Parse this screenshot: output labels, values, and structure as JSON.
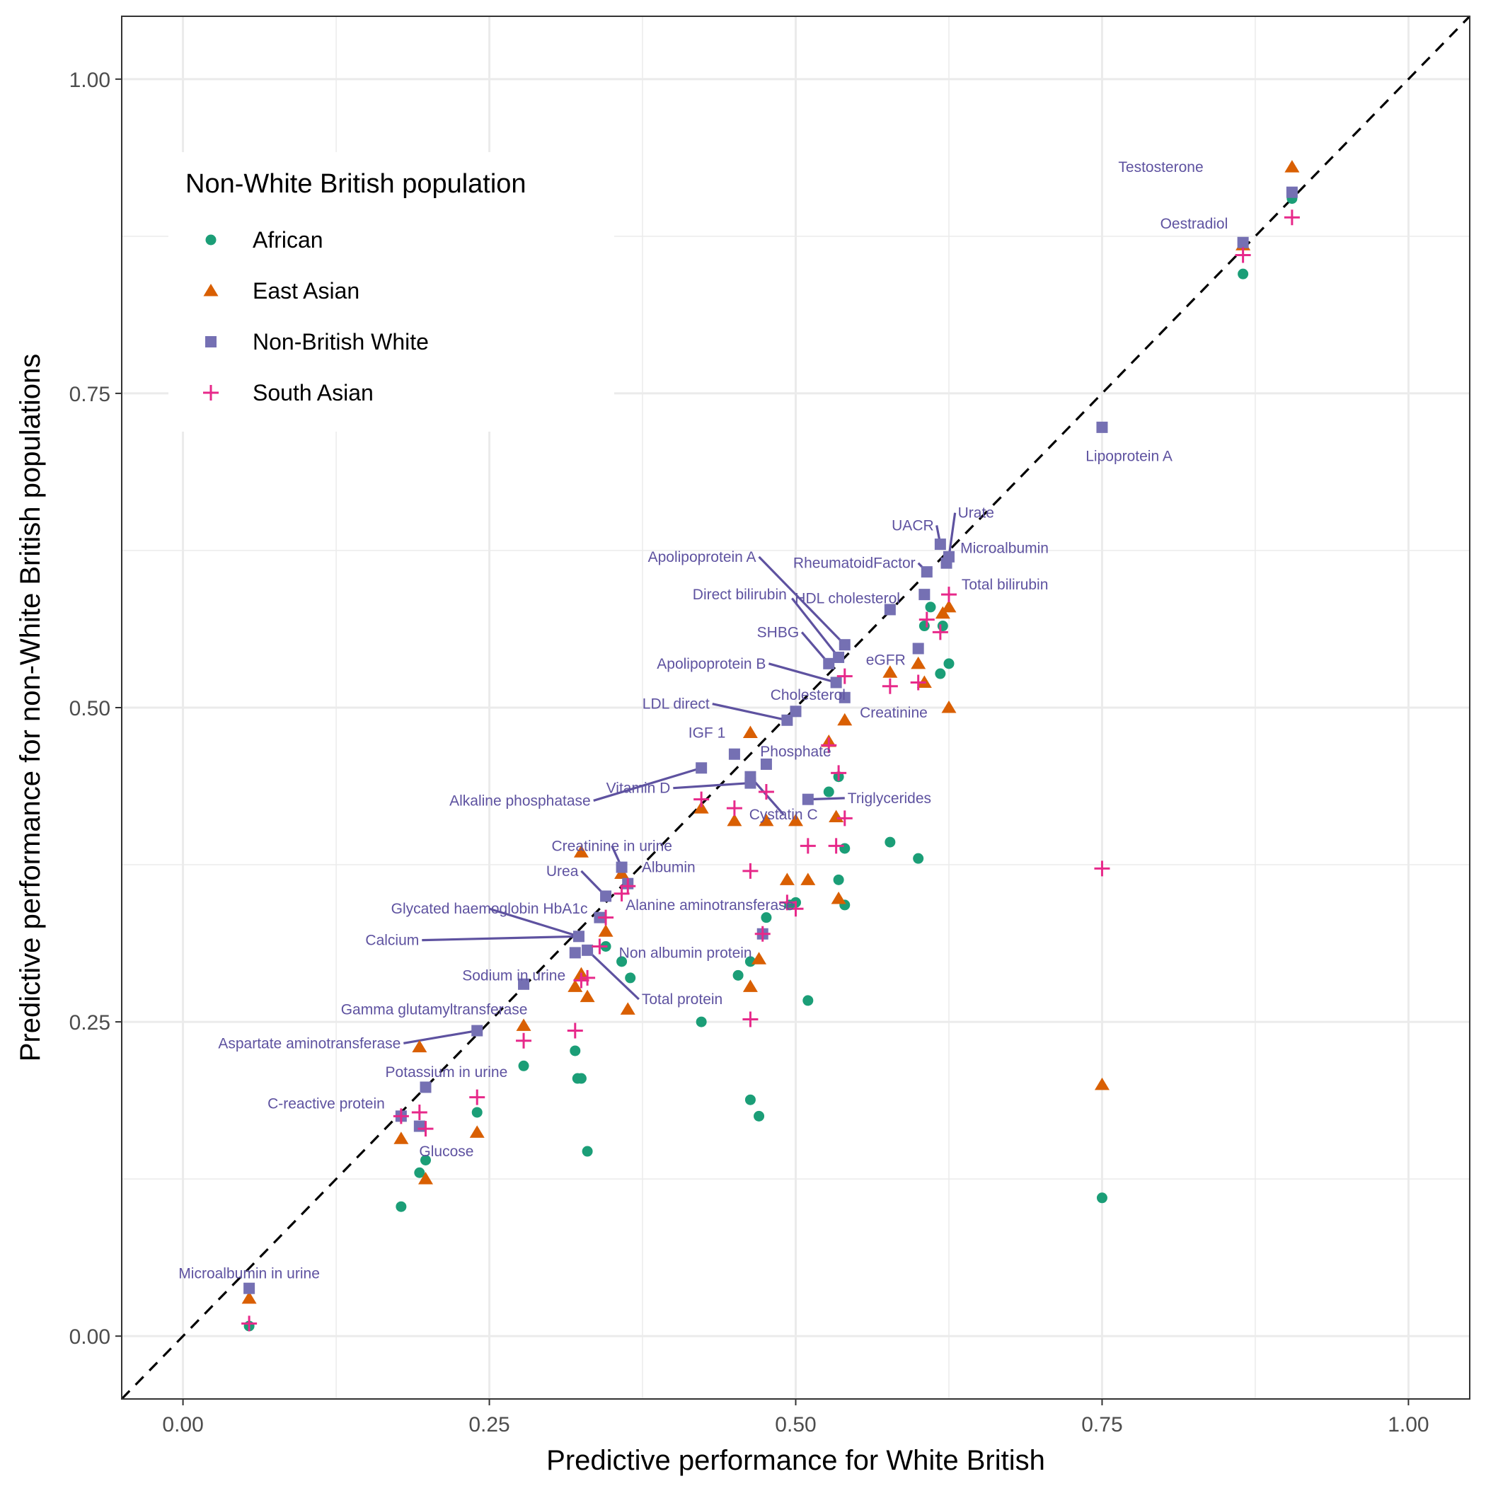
{
  "chart_data": {
    "type": "scatter",
    "xlabel": "Predictive performance for White British",
    "ylabel": "Predictive performance for non-White British populations",
    "xlim": [
      -0.05,
      1.05
    ],
    "ylim": [
      -0.05,
      1.05
    ],
    "x_ticks": [
      "0.00",
      "0.25",
      "0.50",
      "0.75",
      "1.00"
    ],
    "y_ticks": [
      "0.00",
      "0.25",
      "0.50",
      "0.75",
      "1.00"
    ],
    "grid": true,
    "reference_line": "y = x (dashed)",
    "legend": {
      "title": "Non-White British population",
      "placement": "top-left",
      "entries": [
        "African",
        "East Asian",
        "Non-British White",
        "South Asian"
      ]
    },
    "colors": {
      "African": "#1b9e77",
      "East Asian": "#d95f02",
      "Non-British White": "#7570b3",
      "South Asian": "#e7298a",
      "label": "#5e52a0"
    },
    "series": [
      {
        "name": "African",
        "marker": "circle",
        "points": [
          [
            0.905,
            0.905
          ],
          [
            0.865,
            0.845
          ],
          [
            0.61,
            0.58
          ],
          [
            0.62,
            0.565
          ],
          [
            0.605,
            0.565
          ],
          [
            0.625,
            0.535
          ],
          [
            0.618,
            0.527
          ],
          [
            0.577,
            0.393
          ],
          [
            0.6,
            0.38
          ],
          [
            0.54,
            0.388
          ],
          [
            0.535,
            0.363
          ],
          [
            0.54,
            0.343
          ],
          [
            0.535,
            0.445
          ],
          [
            0.527,
            0.433
          ],
          [
            0.5,
            0.345
          ],
          [
            0.495,
            0.343
          ],
          [
            0.476,
            0.333
          ],
          [
            0.463,
            0.298
          ],
          [
            0.453,
            0.287
          ],
          [
            0.51,
            0.267
          ],
          [
            0.423,
            0.25
          ],
          [
            0.463,
            0.188
          ],
          [
            0.47,
            0.175
          ],
          [
            0.345,
            0.31
          ],
          [
            0.358,
            0.298
          ],
          [
            0.365,
            0.285
          ],
          [
            0.32,
            0.227
          ],
          [
            0.322,
            0.205
          ],
          [
            0.325,
            0.205
          ],
          [
            0.33,
            0.147
          ],
          [
            0.278,
            0.215
          ],
          [
            0.24,
            0.178
          ],
          [
            0.198,
            0.14
          ],
          [
            0.193,
            0.13
          ],
          [
            0.178,
            0.103
          ],
          [
            0.054,
            0.008
          ],
          [
            0.75,
            0.11
          ]
        ]
      },
      {
        "name": "East Asian",
        "marker": "triangle",
        "points": [
          [
            0.905,
            0.93
          ],
          [
            0.865,
            0.868
          ],
          [
            0.62,
            0.575
          ],
          [
            0.625,
            0.58
          ],
          [
            0.625,
            0.5
          ],
          [
            0.605,
            0.52
          ],
          [
            0.6,
            0.535
          ],
          [
            0.577,
            0.528
          ],
          [
            0.54,
            0.49
          ],
          [
            0.527,
            0.473
          ],
          [
            0.463,
            0.48
          ],
          [
            0.533,
            0.413
          ],
          [
            0.5,
            0.41
          ],
          [
            0.476,
            0.41
          ],
          [
            0.45,
            0.41
          ],
          [
            0.423,
            0.42
          ],
          [
            0.51,
            0.363
          ],
          [
            0.493,
            0.363
          ],
          [
            0.535,
            0.348
          ],
          [
            0.47,
            0.3
          ],
          [
            0.463,
            0.278
          ],
          [
            0.363,
            0.26
          ],
          [
            0.358,
            0.368
          ],
          [
            0.325,
            0.385
          ],
          [
            0.345,
            0.322
          ],
          [
            0.33,
            0.27
          ],
          [
            0.325,
            0.288
          ],
          [
            0.32,
            0.278
          ],
          [
            0.278,
            0.247
          ],
          [
            0.24,
            0.162
          ],
          [
            0.193,
            0.23
          ],
          [
            0.198,
            0.125
          ],
          [
            0.178,
            0.157
          ],
          [
            0.054,
            0.03
          ],
          [
            0.75,
            0.2
          ]
        ]
      },
      {
        "name": "Non-British White",
        "marker": "square",
        "points": [
          [
            0.905,
            0.91
          ],
          [
            0.865,
            0.87
          ],
          [
            0.75,
            0.723
          ],
          [
            0.618,
            0.63
          ],
          [
            0.625,
            0.62
          ],
          [
            0.623,
            0.615
          ],
          [
            0.607,
            0.608
          ],
          [
            0.605,
            0.59
          ],
          [
            0.577,
            0.578
          ],
          [
            0.6,
            0.547
          ],
          [
            0.54,
            0.55
          ],
          [
            0.535,
            0.54
          ],
          [
            0.527,
            0.535
          ],
          [
            0.533,
            0.52
          ],
          [
            0.54,
            0.508
          ],
          [
            0.5,
            0.497
          ],
          [
            0.493,
            0.49
          ],
          [
            0.45,
            0.463
          ],
          [
            0.476,
            0.455
          ],
          [
            0.423,
            0.452
          ],
          [
            0.463,
            0.445
          ],
          [
            0.463,
            0.44
          ],
          [
            0.51,
            0.427
          ],
          [
            0.358,
            0.373
          ],
          [
            0.345,
            0.35
          ],
          [
            0.363,
            0.36
          ],
          [
            0.34,
            0.333
          ],
          [
            0.473,
            0.32
          ],
          [
            0.323,
            0.318
          ],
          [
            0.33,
            0.307
          ],
          [
            0.32,
            0.305
          ],
          [
            0.278,
            0.28
          ],
          [
            0.24,
            0.243
          ],
          [
            0.198,
            0.198
          ],
          [
            0.178,
            0.175
          ],
          [
            0.193,
            0.167
          ],
          [
            0.054,
            0.038
          ]
        ]
      },
      {
        "name": "South Asian",
        "marker": "plus",
        "points": [
          [
            0.905,
            0.89
          ],
          [
            0.865,
            0.86
          ],
          [
            0.625,
            0.59
          ],
          [
            0.607,
            0.57
          ],
          [
            0.618,
            0.56
          ],
          [
            0.6,
            0.52
          ],
          [
            0.577,
            0.517
          ],
          [
            0.54,
            0.525
          ],
          [
            0.527,
            0.47
          ],
          [
            0.535,
            0.448
          ],
          [
            0.54,
            0.412
          ],
          [
            0.533,
            0.39
          ],
          [
            0.51,
            0.39
          ],
          [
            0.476,
            0.433
          ],
          [
            0.45,
            0.42
          ],
          [
            0.423,
            0.427
          ],
          [
            0.463,
            0.37
          ],
          [
            0.493,
            0.345
          ],
          [
            0.5,
            0.34
          ],
          [
            0.473,
            0.32
          ],
          [
            0.463,
            0.252
          ],
          [
            0.75,
            0.372
          ],
          [
            0.363,
            0.358
          ],
          [
            0.358,
            0.352
          ],
          [
            0.345,
            0.333
          ],
          [
            0.34,
            0.31
          ],
          [
            0.33,
            0.285
          ],
          [
            0.325,
            0.283
          ],
          [
            0.32,
            0.243
          ],
          [
            0.278,
            0.235
          ],
          [
            0.24,
            0.19
          ],
          [
            0.193,
            0.178
          ],
          [
            0.198,
            0.165
          ],
          [
            0.178,
            0.175
          ],
          [
            0.054,
            0.01
          ]
        ]
      }
    ],
    "annotations": [
      {
        "text": "Testosterone",
        "x": 0.905,
        "y": 0.91,
        "lx": 0.835,
        "ly": 0.93,
        "anchor": "end",
        "leader": false
      },
      {
        "text": "Oestradiol",
        "x": 0.865,
        "y": 0.87,
        "lx": 0.855,
        "ly": 0.885,
        "anchor": "end",
        "leader": false
      },
      {
        "text": "Lipoprotein A",
        "x": 0.75,
        "y": 0.723,
        "lx": 0.772,
        "ly": 0.7,
        "anchor": "middle",
        "leader": false
      },
      {
        "text": "Urate",
        "x": 0.625,
        "y": 0.62,
        "lx": 0.63,
        "ly": 0.655,
        "anchor": "start",
        "leader": true
      },
      {
        "text": "UACR",
        "x": 0.618,
        "y": 0.63,
        "lx": 0.615,
        "ly": 0.645,
        "anchor": "end",
        "leader": true
      },
      {
        "text": "Microalbumin",
        "x": 0.623,
        "y": 0.615,
        "lx": 0.632,
        "ly": 0.627,
        "anchor": "start",
        "leader": false
      },
      {
        "text": "RheumatoidFactor",
        "x": 0.607,
        "y": 0.608,
        "lx": 0.6,
        "ly": 0.615,
        "anchor": "end",
        "leader": true
      },
      {
        "text": "Total bilirubin",
        "x": 0.625,
        "y": 0.59,
        "lx": 0.633,
        "ly": 0.598,
        "anchor": "start",
        "leader": false
      },
      {
        "text": "Apolipoprotein A",
        "x": 0.54,
        "y": 0.55,
        "lx": 0.47,
        "ly": 0.62,
        "anchor": "end",
        "leader": true
      },
      {
        "text": "HDL cholesterol",
        "x": 0.535,
        "y": 0.54,
        "lx": 0.497,
        "ly": 0.587,
        "anchor": "start",
        "leader": true
      },
      {
        "text": "Direct bilirubin",
        "x": 0.577,
        "y": 0.578,
        "lx": 0.495,
        "ly": 0.59,
        "anchor": "end",
        "leader": false
      },
      {
        "text": "SHBG",
        "x": 0.527,
        "y": 0.535,
        "lx": 0.505,
        "ly": 0.56,
        "anchor": "end",
        "leader": true
      },
      {
        "text": "eGFR",
        "x": 0.6,
        "y": 0.547,
        "lx": 0.555,
        "ly": 0.538,
        "anchor": "start",
        "leader": false
      },
      {
        "text": "Apolipoprotein B",
        "x": 0.533,
        "y": 0.52,
        "lx": 0.478,
        "ly": 0.535,
        "anchor": "end",
        "leader": true
      },
      {
        "text": "Cholesterol",
        "x": 0.5,
        "y": 0.497,
        "lx": 0.51,
        "ly": 0.51,
        "anchor": "middle",
        "leader": false
      },
      {
        "text": "Creatinine",
        "x": 0.54,
        "y": 0.508,
        "lx": 0.55,
        "ly": 0.496,
        "anchor": "start",
        "leader": false
      },
      {
        "text": "LDL direct",
        "x": 0.493,
        "y": 0.49,
        "lx": 0.432,
        "ly": 0.503,
        "anchor": "end",
        "leader": true
      },
      {
        "text": "IGF 1",
        "x": 0.45,
        "y": 0.463,
        "lx": 0.445,
        "ly": 0.48,
        "anchor": "end",
        "leader": false
      },
      {
        "text": "Phosphate",
        "x": 0.476,
        "y": 0.455,
        "lx": 0.5,
        "ly": 0.465,
        "anchor": "middle",
        "leader": false
      },
      {
        "text": "Alkaline phosphatase",
        "x": 0.423,
        "y": 0.452,
        "lx": 0.335,
        "ly": 0.426,
        "anchor": "end",
        "leader": true
      },
      {
        "text": "Vitamin D",
        "x": 0.463,
        "y": 0.44,
        "lx": 0.4,
        "ly": 0.436,
        "anchor": "end",
        "leader": true
      },
      {
        "text": "Cystatin C",
        "x": 0.463,
        "y": 0.445,
        "lx": 0.49,
        "ly": 0.415,
        "anchor": "middle",
        "leader": true
      },
      {
        "text": "Triglycerides",
        "x": 0.51,
        "y": 0.427,
        "lx": 0.54,
        "ly": 0.428,
        "anchor": "start",
        "leader": true
      },
      {
        "text": "Creatinine in urine",
        "x": 0.358,
        "y": 0.373,
        "lx": 0.35,
        "ly": 0.39,
        "anchor": "middle",
        "leader": true
      },
      {
        "text": "Albumin",
        "x": 0.363,
        "y": 0.36,
        "lx": 0.372,
        "ly": 0.373,
        "anchor": "start",
        "leader": false
      },
      {
        "text": "Urea",
        "x": 0.345,
        "y": 0.35,
        "lx": 0.325,
        "ly": 0.37,
        "anchor": "end",
        "leader": true
      },
      {
        "text": "Alanine aminotransferase",
        "x": 0.473,
        "y": 0.32,
        "lx": 0.43,
        "ly": 0.343,
        "anchor": "middle",
        "leader": false
      },
      {
        "text": "Glycated haemoglobin HbA1c",
        "x": 0.323,
        "y": 0.318,
        "lx": 0.25,
        "ly": 0.34,
        "anchor": "middle",
        "leader": true
      },
      {
        "text": "Calcium",
        "x": 0.323,
        "y": 0.318,
        "lx": 0.195,
        "ly": 0.315,
        "anchor": "end",
        "leader": true
      },
      {
        "text": "Non albumin protein",
        "x": 0.34,
        "y": 0.333,
        "lx": 0.41,
        "ly": 0.305,
        "anchor": "middle",
        "leader": false
      },
      {
        "text": "Sodium in urine",
        "x": 0.278,
        "y": 0.28,
        "lx": 0.27,
        "ly": 0.287,
        "anchor": "middle",
        "leader": false
      },
      {
        "text": "Total protein",
        "x": 0.33,
        "y": 0.307,
        "lx": 0.372,
        "ly": 0.268,
        "anchor": "start",
        "leader": true
      },
      {
        "text": "Gamma glutamyltransferase",
        "x": 0.24,
        "y": 0.243,
        "lx": 0.205,
        "ly": 0.26,
        "anchor": "middle",
        "leader": false
      },
      {
        "text": "Aspartate aminotransferase",
        "x": 0.24,
        "y": 0.243,
        "lx": 0.18,
        "ly": 0.233,
        "anchor": "end",
        "leader": true
      },
      {
        "text": "Potassium in urine",
        "x": 0.198,
        "y": 0.198,
        "lx": 0.215,
        "ly": 0.21,
        "anchor": "middle",
        "leader": false
      },
      {
        "text": "C-reactive protein",
        "x": 0.178,
        "y": 0.175,
        "lx": 0.167,
        "ly": 0.185,
        "anchor": "end",
        "leader": false
      },
      {
        "text": "Glucose",
        "x": 0.193,
        "y": 0.167,
        "lx": 0.215,
        "ly": 0.147,
        "anchor": "middle",
        "leader": false
      },
      {
        "text": "Microalbumin in urine",
        "x": 0.054,
        "y": 0.038,
        "lx": 0.054,
        "ly": 0.05,
        "anchor": "middle",
        "leader": false
      }
    ]
  }
}
